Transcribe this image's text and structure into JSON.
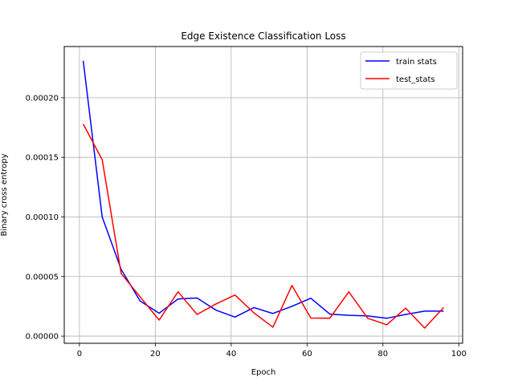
{
  "chart_data": {
    "type": "line",
    "title": "Edge Existence Classification Loss",
    "xlabel": "Epoch",
    "ylabel": "Binary cross entropy",
    "xlim": [
      -4,
      101
    ],
    "ylim": [
      -6e-06,
      0.000243
    ],
    "xticks": [
      0,
      20,
      40,
      60,
      80,
      100
    ],
    "xtick_labels": [
      "0",
      "20",
      "40",
      "60",
      "80",
      "100"
    ],
    "yticks": [
      0.0,
      5e-05,
      0.0001,
      0.00015,
      0.0002
    ],
    "ytick_labels": [
      "0.00000",
      "0.00005",
      "0.00010",
      "0.00015",
      "0.00020"
    ],
    "grid": true,
    "legend_position": "top-right",
    "x": [
      1,
      6,
      11,
      16,
      21,
      26,
      31,
      36,
      41,
      46,
      51,
      56,
      61,
      66,
      71,
      76,
      81,
      86,
      91,
      96
    ],
    "series": [
      {
        "name": "train stats",
        "color": "#0000ff",
        "values": [
          0.000231,
          0.0001,
          5.6e-05,
          2.95e-05,
          1.92e-05,
          3.12e-05,
          3.2e-05,
          2.18e-05,
          1.6e-05,
          2.4e-05,
          1.9e-05,
          2.5e-05,
          3.18e-05,
          1.85e-05,
          1.75e-05,
          1.7e-05,
          1.5e-05,
          1.82e-05,
          2.1e-05,
          2.1e-05
        ]
      },
      {
        "name": "test_stats",
        "color": "#ff0000",
        "values": [
          0.000178,
          0.000148,
          5.25e-05,
          3.3e-05,
          1.35e-05,
          3.72e-05,
          1.82e-05,
          2.7e-05,
          3.45e-05,
          1.95e-05,
          7.5e-06,
          4.25e-05,
          1.52e-05,
          1.5e-05,
          3.72e-05,
          1.5e-05,
          9.5e-06,
          2.35e-05,
          6.8e-06,
          2.4e-05
        ]
      }
    ]
  }
}
